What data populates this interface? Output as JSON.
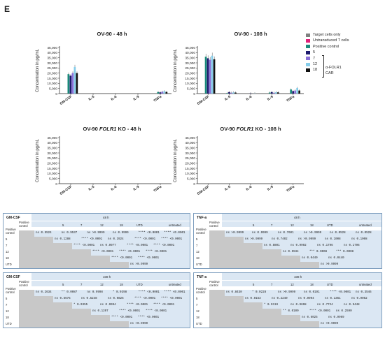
{
  "panel_label": "E",
  "legend": {
    "items": [
      {
        "label": "Target cells only",
        "color": "#808080"
      },
      {
        "label": "Untransduced T cells",
        "color": "#e0207a"
      },
      {
        "label": "Positive control",
        "color": "#1a8a7a"
      },
      {
        "label": "5",
        "color": "#1c1a6e"
      },
      {
        "label": "7",
        "color": "#8a6fd8"
      },
      {
        "label": "12",
        "color": "#86cdea"
      },
      {
        "label": "18",
        "color": "#111111"
      }
    ],
    "car_label": "α-FOLR1 CAR"
  },
  "chart_data": [
    {
      "type": "bar",
      "title": "OV-90 - 48 h",
      "ylabel": "Concentration in pg/mL",
      "ylim": [
        0,
        45000
      ],
      "yticks": [
        "0",
        "5,000",
        "10,000",
        "15,000",
        "20,000",
        "25,000",
        "30,000",
        "35,000",
        "40,000",
        "45,000"
      ],
      "categories": [
        "GM-CSF",
        "IL-5",
        "IL-6",
        "IL-9",
        "TNFa"
      ],
      "series": [
        {
          "name": "Target cells only",
          "values": [
            0,
            0,
            0,
            0,
            0
          ]
        },
        {
          "name": "Untransduced T cells",
          "values": [
            0,
            0,
            0,
            0,
            0
          ]
        },
        {
          "name": "Positive control",
          "values": [
            19000,
            0,
            0,
            0,
            1500
          ]
        },
        {
          "name": "5",
          "values": [
            17500,
            0,
            0,
            0,
            1200
          ]
        },
        {
          "name": "7",
          "values": [
            20000,
            0,
            0,
            0,
            1800
          ]
        },
        {
          "name": "12",
          "values": [
            26000,
            0,
            0,
            0,
            2300
          ]
        },
        {
          "name": "18",
          "values": [
            20000,
            0,
            0,
            0,
            1600
          ]
        }
      ]
    },
    {
      "type": "bar",
      "title": "OV-90 - 108 h",
      "ylabel": "Concentration in pg/mL",
      "ylim": [
        0,
        45000
      ],
      "yticks": [
        "0",
        "5,000",
        "10,000",
        "15,000",
        "20,000",
        "25,000",
        "30,000",
        "35,000",
        "40,000",
        "45,000"
      ],
      "categories": [
        "GM-CSF",
        "IL-5",
        "IL-6",
        "IL-9",
        "TNFa"
      ],
      "series": [
        {
          "name": "Target cells only",
          "values": [
            0,
            0,
            0,
            0,
            0
          ]
        },
        {
          "name": "Untransduced T cells",
          "values": [
            0,
            0,
            0,
            0,
            0
          ]
        },
        {
          "name": "Positive control",
          "values": [
            36000,
            500,
            0,
            1000,
            4000
          ]
        },
        {
          "name": "5",
          "values": [
            34500,
            1500,
            300,
            1500,
            2500
          ]
        },
        {
          "name": "7",
          "values": [
            33000,
            800,
            0,
            800,
            3000
          ]
        },
        {
          "name": "12",
          "values": [
            37000,
            1200,
            200,
            1300,
            5500
          ]
        },
        {
          "name": "18",
          "values": [
            33500,
            1000,
            0,
            1200,
            3000
          ]
        }
      ]
    },
    {
      "type": "bar",
      "title_prefix": "OV-90 ",
      "title_italic": "FOLR1",
      "title_suffix": " KO - 48 h",
      "ylabel": "Concentration in pg/mL",
      "ylim": [
        0,
        45000
      ],
      "yticks": [
        "0",
        "5,000",
        "10,000",
        "15,000",
        "20,000",
        "25,000",
        "30,000",
        "35,000",
        "40,000",
        "45,000"
      ],
      "categories": [
        "GM-CSF",
        "IL-5",
        "IL-6",
        "IL-9",
        "TNFa"
      ],
      "series": []
    },
    {
      "type": "bar",
      "title_prefix": "OV-90 ",
      "title_italic": "FOLR1",
      "title_suffix": " KO - 108 h",
      "ylabel": "Concentration in pg/mL",
      "ylim": [
        0,
        45000
      ],
      "yticks": [
        "0",
        "5,000",
        "10,000",
        "15,000",
        "20,000",
        "25,000",
        "30,000",
        "35,000",
        "40,000",
        "45,000"
      ],
      "categories": [
        "GM-CSF",
        "IL-5",
        "IL-6",
        "IL-9",
        "TNFa"
      ],
      "series": []
    }
  ],
  "tables": [
    {
      "title": "GM-CSF",
      "time": "48 h",
      "cols": [
        "Positive control",
        "5",
        "7",
        "12",
        "18",
        "UTD",
        "untreated"
      ],
      "rows": [
        {
          "label": "Positive control",
          "cells": [
            "ns 0.5524",
            "ns 0.9537",
            "ns >0.9999",
            "ns 0.9999",
            "**** <0.0001",
            "**** <0.0001"
          ]
        },
        {
          "label": "5",
          "cells": [
            "ns 0.1288",
            "**** <0.0001",
            "ns 0.3924",
            "**** <0.0001",
            "**** <0.0001"
          ]
        },
        {
          "label": "7",
          "cells": [
            "**** <0.0001",
            "ns 0.9977",
            "**** <0.0001",
            "**** <0.0001"
          ]
        },
        {
          "label": "12",
          "cells": [
            "**** <0.0001",
            "**** <0.0001",
            "**** <0.0001"
          ]
        },
        {
          "label": "18",
          "cells": [
            "**** <0.0001",
            "**** <0.0001"
          ]
        },
        {
          "label": "UTD",
          "cells": [
            "ns >0.9999"
          ]
        }
      ]
    },
    {
      "title": "TNF-a",
      "time": "48 h",
      "cols": [
        "Positive control",
        "5",
        "7",
        "12",
        "18",
        "UTD",
        "untreated"
      ],
      "rows": [
        {
          "label": "Positive control",
          "cells": [
            "ns >0.9999",
            "ns 0.9999",
            "ns 0.7601",
            "ns >0.9999",
            "ns 0.0528",
            "ns 0.0528"
          ]
        },
        {
          "label": "5",
          "cells": [
            "ns >0.9999",
            "ns 0.7402",
            "ns >0.9999",
            "ns 0.1008",
            "ns 0.1008"
          ]
        },
        {
          "label": "7",
          "cells": [
            "ns 0.8801",
            "ns 0.9992",
            "ns 0.1796",
            "ns 0.1796"
          ]
        },
        {
          "label": "12",
          "cells": [
            "ns 0.5534",
            "*** 0.0008",
            "*** 0.0008"
          ]
        },
        {
          "label": "18",
          "cells": [
            "ns 0.0440",
            "ns 0.0440"
          ]
        },
        {
          "label": "UTD",
          "cells": [
            "ns >0.9999"
          ]
        }
      ]
    },
    {
      "title": "GM-CSF",
      "time": "108 h",
      "cols": [
        "Positive control",
        "5",
        "7",
        "12",
        "18",
        "UTD",
        "untreated"
      ],
      "rows": [
        {
          "label": "Positive control",
          "cells": [
            "ns 0.2634",
            "** 0.0087",
            "ns 0.9998",
            "* 0.0398",
            "**** <0.0001",
            "**** <0.0001"
          ]
        },
        {
          "label": "5",
          "cells": [
            "ns 0.5675",
            "ns 0.5248",
            "ns 0.9826",
            "**** <0.0001",
            "**** <0.0001"
          ]
        },
        {
          "label": "7",
          "cells": [
            "* 0.0355",
            "ns 0.9994",
            "**** <0.0001",
            "**** <0.0001"
          ]
        },
        {
          "label": "12",
          "cells": [
            "ns 0.1207",
            "**** <0.0001",
            "**** <0.0001"
          ]
        },
        {
          "label": "18",
          "cells": [
            "**** <0.0001",
            "**** <0.0001"
          ]
        },
        {
          "label": "UTD",
          "cells": [
            "ns >0.9999"
          ]
        }
      ]
    },
    {
      "title": "TNF-a",
      "time": "108 h",
      "cols": [
        "Positive control",
        "5",
        "7",
        "12",
        "18",
        "UTD",
        "untreated"
      ],
      "rows": [
        {
          "label": "Positive control",
          "cells": [
            "ns 0.8430",
            "* 0.0228",
            "ns >0.9999",
            "ns 0.0191",
            "**** <0.0001",
            "ns 0.3546"
          ]
        },
        {
          "label": "5",
          "cells": [
            "ns 0.9153",
            "ns 0.2240",
            "ns 0.9994",
            "ns 0.1361",
            "ns 0.9052"
          ]
        },
        {
          "label": "7",
          "cells": [
            "* 0.0119",
            "ns 0.9698",
            "ns 0.7724",
            "ns 0.9448"
          ]
        },
        {
          "label": "12",
          "cells": [
            "** 0.0100",
            "**** <0.0001",
            "ns 0.2590"
          ]
        },
        {
          "label": "18",
          "cells": [
            "ns 0.6025",
            "ns 0.9969"
          ]
        },
        {
          "label": "UTD",
          "cells": [
            "ns >0.9999"
          ]
        }
      ]
    }
  ]
}
